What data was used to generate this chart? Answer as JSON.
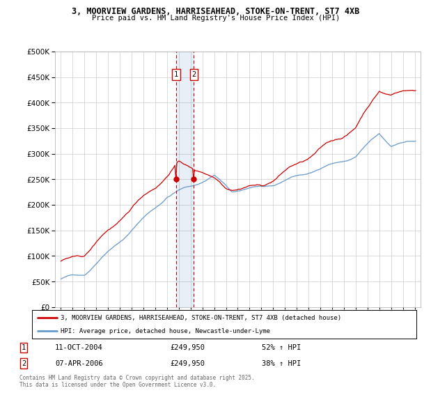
{
  "title1": "3, MOORVIEW GARDENS, HARRISEAHEAD, STOKE-ON-TRENT, ST7 4XB",
  "title2": "Price paid vs. HM Land Registry's House Price Index (HPI)",
  "legend_red": "3, MOORVIEW GARDENS, HARRISEAHEAD, STOKE-ON-TRENT, ST7 4XB (detached house)",
  "legend_blue": "HPI: Average price, detached house, Newcastle-under-Lyme",
  "footnote": "Contains HM Land Registry data © Crown copyright and database right 2025.\nThis data is licensed under the Open Government Licence v3.0.",
  "marker1_date": "11-OCT-2004",
  "marker1_price": "£249,950",
  "marker1_hpi": "52% ↑ HPI",
  "marker2_date": "07-APR-2006",
  "marker2_price": "£249,950",
  "marker2_hpi": "38% ↑ HPI",
  "red_color": "#cc0000",
  "blue_color": "#6699cc",
  "marker_x1": 2004.78,
  "marker_x2": 2006.27,
  "background_color": "#ffffff",
  "ylim": [
    0,
    500000
  ],
  "xlim_start": 1994.5,
  "xlim_end": 2025.5
}
